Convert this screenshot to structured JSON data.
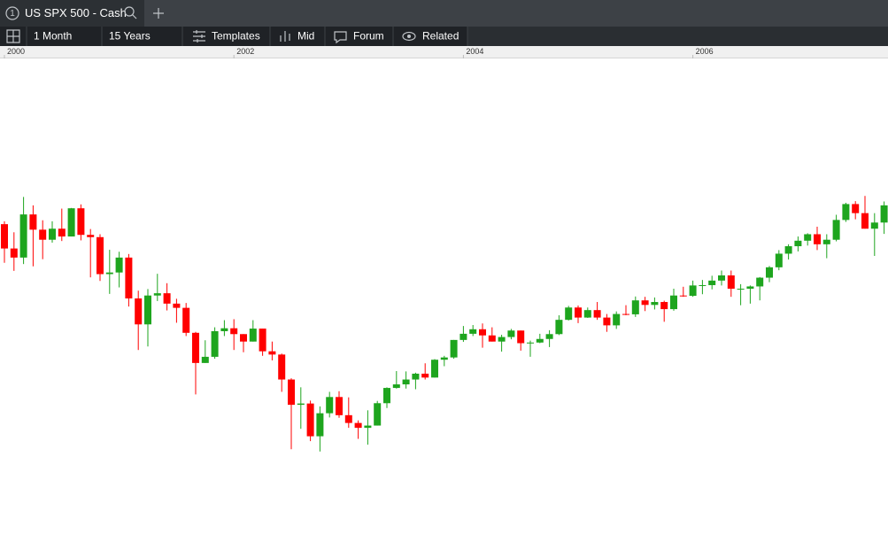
{
  "tab": {
    "number": "1",
    "title": "US SPX 500 - Cash"
  },
  "toolbar": {
    "interval": "1 Month",
    "range": "15 Years",
    "templates": "Templates",
    "price": "Mid",
    "forum": "Forum",
    "related": "Related"
  },
  "chart_data": {
    "type": "candlestick",
    "x": [
      "2000-01",
      "2000-02",
      "2000-03",
      "2000-04",
      "2000-05",
      "2000-06",
      "2000-07",
      "2000-08",
      "2000-09",
      "2000-10",
      "2000-11",
      "2000-12",
      "2001-01",
      "2001-02",
      "2001-03",
      "2001-04",
      "2001-05",
      "2001-06",
      "2001-07",
      "2001-08",
      "2001-09",
      "2001-10",
      "2001-11",
      "2001-12",
      "2002-01",
      "2002-02",
      "2002-03",
      "2002-04",
      "2002-05",
      "2002-06",
      "2002-07",
      "2002-08",
      "2002-09",
      "2002-10",
      "2002-11",
      "2002-12",
      "2003-01",
      "2003-02",
      "2003-03",
      "2003-04",
      "2003-05",
      "2003-06",
      "2003-07",
      "2003-08",
      "2003-09",
      "2003-10",
      "2003-11",
      "2003-12",
      "2004-01",
      "2004-02",
      "2004-03",
      "2004-04",
      "2004-05",
      "2004-06",
      "2004-07",
      "2004-08",
      "2004-09",
      "2004-10",
      "2004-11",
      "2004-12",
      "2005-01",
      "2005-02",
      "2005-03",
      "2005-04",
      "2005-05",
      "2005-06",
      "2005-07",
      "2005-08",
      "2005-09",
      "2005-10",
      "2005-11",
      "2005-12",
      "2006-01",
      "2006-02",
      "2006-03",
      "2006-04",
      "2006-05",
      "2006-06",
      "2006-07",
      "2006-08",
      "2006-09",
      "2006-10",
      "2006-11",
      "2006-12",
      "2007-01",
      "2007-02",
      "2007-03",
      "2007-04",
      "2007-05",
      "2007-06",
      "2007-07",
      "2007-08",
      "2007-09"
    ],
    "open": [
      1469,
      1394,
      1366,
      1499,
      1452,
      1421,
      1455,
      1431,
      1518,
      1436,
      1429,
      1315,
      1320,
      1366,
      1240,
      1160,
      1249,
      1256,
      1224,
      1211,
      1134,
      1041,
      1060,
      1139,
      1148,
      1130,
      1107,
      1147,
      1077,
      1067,
      990,
      912,
      916,
      815,
      886,
      936,
      880,
      856,
      841,
      848,
      917,
      964,
      975,
      990,
      1008,
      996,
      1051,
      1058,
      1112,
      1131,
      1145,
      1126,
      1107,
      1121,
      1141,
      1102,
      1104,
      1115,
      1130,
      1174,
      1212,
      1181,
      1204,
      1181,
      1157,
      1192,
      1191,
      1234,
      1220,
      1229,
      1207,
      1249,
      1248,
      1280,
      1281,
      1295,
      1311,
      1270,
      1270,
      1277,
      1304,
      1336,
      1378,
      1401,
      1418,
      1438,
      1407,
      1421,
      1482,
      1531,
      1503,
      1455,
      1474
    ],
    "high": [
      1478,
      1444,
      1553,
      1527,
      1481,
      1478,
      1517,
      1519,
      1530,
      1454,
      1438,
      1390,
      1384,
      1377,
      1264,
      1269,
      1316,
      1287,
      1239,
      1226,
      1137,
      1111,
      1151,
      1173,
      1176,
      1130,
      1173,
      1147,
      1107,
      1070,
      994,
      966,
      925,
      907,
      952,
      954,
      935,
      864,
      895,
      924,
      966,
      1016,
      1015,
      1011,
      1040,
      1053,
      1063,
      1112,
      1155,
      1158,
      1163,
      1151,
      1128,
      1146,
      1141,
      1110,
      1131,
      1142,
      1188,
      1217,
      1218,
      1212,
      1229,
      1192,
      1200,
      1219,
      1246,
      1245,
      1243,
      1233,
      1270,
      1276,
      1295,
      1297,
      1310,
      1326,
      1326,
      1284,
      1280,
      1306,
      1340,
      1389,
      1407,
      1431,
      1441,
      1461,
      1438,
      1498,
      1535,
      1540,
      1556,
      1503,
      1539
    ],
    "low": [
      1350,
      1325,
      1346,
      1339,
      1361,
      1412,
      1417,
      1431,
      1419,
      1305,
      1294,
      1254,
      1274,
      1215,
      1081,
      1092,
      1232,
      1203,
      1165,
      1124,
      944,
      1041,
      1054,
      1124,
      1081,
      1074,
      1107,
      1063,
      1049,
      952,
      775,
      838,
      800,
      768,
      873,
      872,
      841,
      807,
      789,
      848,
      902,
      962,
      962,
      960,
      990,
      996,
      1031,
      1054,
      1106,
      1124,
      1088,
      1107,
      1076,
      1114,
      1079,
      1060,
      1102,
      1090,
      1127,
      1172,
      1164,
      1180,
      1174,
      1137,
      1146,
      1188,
      1183,
      1201,
      1206,
      1168,
      1202,
      1245,
      1245,
      1253,
      1268,
      1280,
      1245,
      1219,
      1224,
      1234,
      1290,
      1327,
      1360,
      1385,
      1403,
      1389,
      1364,
      1416,
      1476,
      1484,
      1455,
      1371,
      1439
    ],
    "close": [
      1394,
      1366,
      1499,
      1452,
      1421,
      1455,
      1431,
      1518,
      1436,
      1429,
      1315,
      1320,
      1366,
      1240,
      1160,
      1249,
      1256,
      1224,
      1211,
      1134,
      1041,
      1060,
      1139,
      1148,
      1130,
      1107,
      1147,
      1077,
      1067,
      990,
      912,
      916,
      815,
      886,
      936,
      880,
      856,
      841,
      848,
      917,
      964,
      975,
      990,
      1008,
      996,
      1051,
      1058,
      1112,
      1131,
      1145,
      1126,
      1107,
      1121,
      1141,
      1102,
      1104,
      1115,
      1130,
      1174,
      1212,
      1181,
      1204,
      1181,
      1157,
      1192,
      1191,
      1234,
      1220,
      1229,
      1207,
      1249,
      1248,
      1280,
      1281,
      1295,
      1311,
      1270,
      1270,
      1277,
      1304,
      1336,
      1378,
      1401,
      1418,
      1438,
      1407,
      1421,
      1482,
      1531,
      1503,
      1455,
      1474,
      1527
    ],
    "up_color": "#1ea51e",
    "down_color": "#ff0000",
    "ylim": [
      530,
      1980
    ],
    "xticks": [
      2000,
      2002,
      2004,
      2006
    ]
  }
}
